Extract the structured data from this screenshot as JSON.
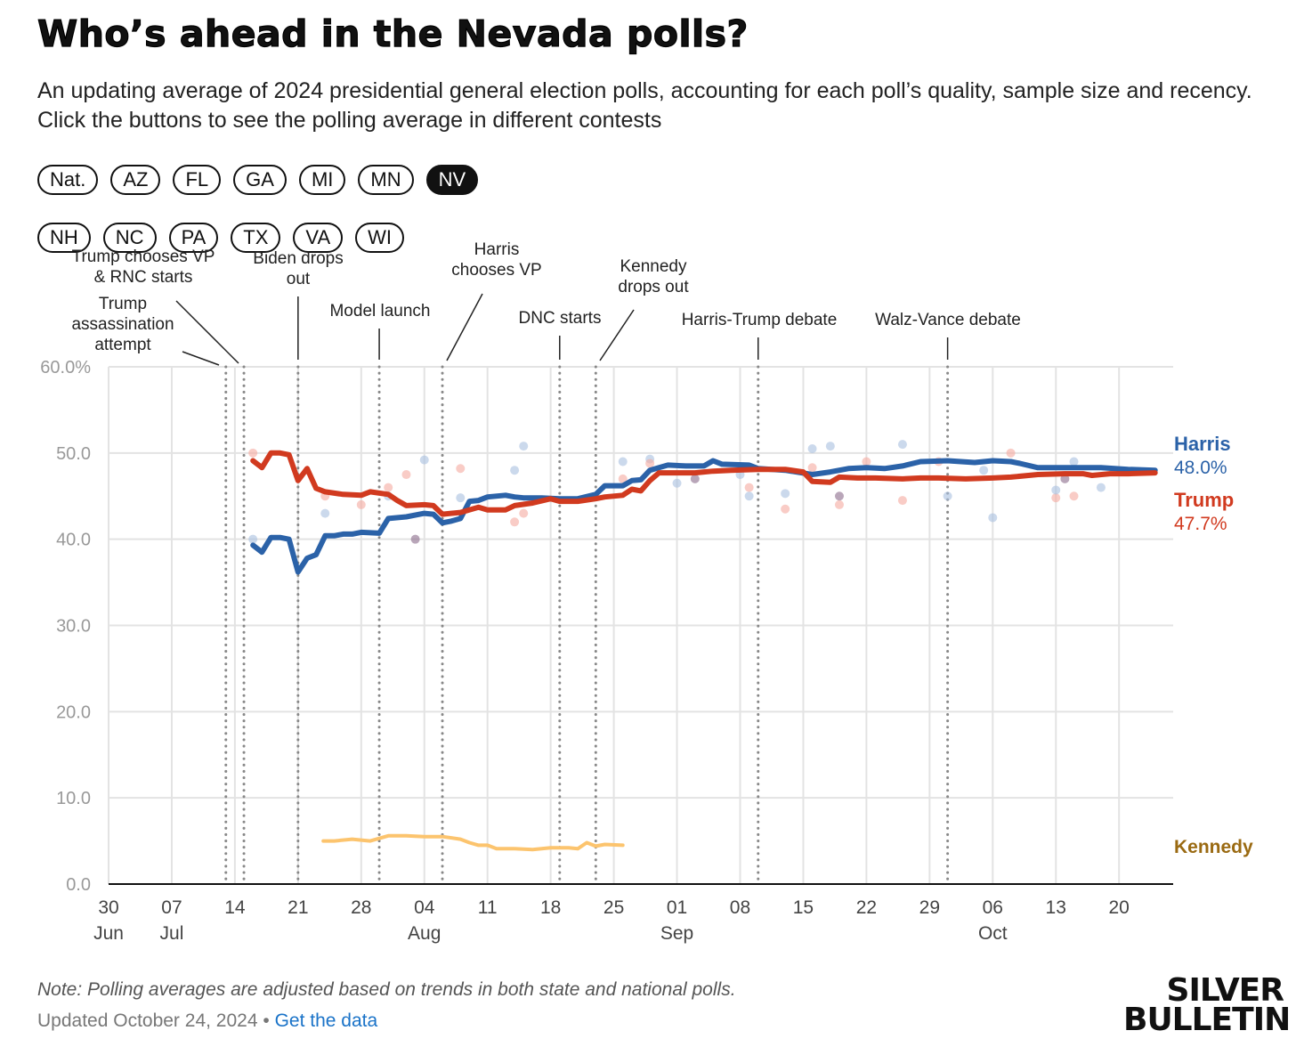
{
  "title": "Who’s ahead in the Nevada polls?",
  "subtitle": "An updating average of 2024 presidential general election polls, accounting for each poll’s quality, sample size and recency. Click the buttons to see the polling average in different contests",
  "buttons_row1": [
    "Nat.",
    "AZ",
    "FL",
    "GA",
    "MI",
    "MN",
    "NV"
  ],
  "buttons_row2": [
    "NH",
    "NC",
    "PA",
    "TX",
    "VA",
    "WI"
  ],
  "active_button": "NV",
  "note": "Note: Polling averages are adjusted based on trends in both state and national polls.",
  "updated": "Updated October 24, 2024",
  "separator": "•",
  "get_data": "Get the data",
  "logo": "SILVER BULLETIN",
  "chart_data": {
    "type": "line",
    "xlabel": "",
    "ylabel": "",
    "x_unit": "days since 30 Jun 2024",
    "xlim": [
      0,
      118
    ],
    "ylim": [
      0,
      60
    ],
    "yticks": [
      0,
      10,
      20,
      30,
      40,
      50,
      60
    ],
    "ytick_labels": [
      "0.0",
      "10.0",
      "20.0",
      "30.0",
      "40.0",
      "50.0",
      "60.0%"
    ],
    "xticks": [
      {
        "day": 0,
        "label": "30",
        "month": "Jun"
      },
      {
        "day": 7,
        "label": "07",
        "month": "Jul"
      },
      {
        "day": 14,
        "label": "14"
      },
      {
        "day": 21,
        "label": "21"
      },
      {
        "day": 28,
        "label": "28"
      },
      {
        "day": 35,
        "label": "04",
        "month": "Aug"
      },
      {
        "day": 42,
        "label": "11"
      },
      {
        "day": 49,
        "label": "18"
      },
      {
        "day": 56,
        "label": "25"
      },
      {
        "day": 63,
        "label": "01",
        "month": "Sep"
      },
      {
        "day": 70,
        "label": "08"
      },
      {
        "day": 77,
        "label": "15"
      },
      {
        "day": 84,
        "label": "22"
      },
      {
        "day": 91,
        "label": "29"
      },
      {
        "day": 98,
        "label": "06",
        "month": "Oct"
      },
      {
        "day": 105,
        "label": "13"
      },
      {
        "day": 112,
        "label": "20"
      }
    ],
    "grid": true,
    "series": [
      {
        "name": "Harris",
        "label_value": "48.0%",
        "color": "#2b62a8",
        "points": [
          [
            16,
            39.3
          ],
          [
            17,
            38.5
          ],
          [
            18,
            40.2
          ],
          [
            19,
            40.2
          ],
          [
            20,
            40.0
          ],
          [
            21,
            36.2
          ],
          [
            22,
            37.8
          ],
          [
            23,
            38.2
          ],
          [
            24,
            40.4
          ],
          [
            25,
            40.4
          ],
          [
            26,
            40.6
          ],
          [
            27,
            40.6
          ],
          [
            28,
            40.8
          ],
          [
            30,
            40.7
          ],
          [
            31,
            42.4
          ],
          [
            33,
            42.6
          ],
          [
            35,
            43.0
          ],
          [
            36,
            42.9
          ],
          [
            37,
            41.9
          ],
          [
            38,
            42.1
          ],
          [
            39,
            42.4
          ],
          [
            40,
            44.4
          ],
          [
            41,
            44.5
          ],
          [
            42,
            44.9
          ],
          [
            44,
            45.1
          ],
          [
            45,
            44.9
          ],
          [
            46,
            44.8
          ],
          [
            48,
            44.8
          ],
          [
            50,
            44.7
          ],
          [
            52,
            44.7
          ],
          [
            54,
            45.2
          ],
          [
            55,
            46.2
          ],
          [
            57,
            46.2
          ],
          [
            58,
            46.8
          ],
          [
            59,
            46.9
          ],
          [
            60,
            48.0
          ],
          [
            61,
            48.3
          ],
          [
            62,
            48.6
          ],
          [
            64,
            48.5
          ],
          [
            66,
            48.5
          ],
          [
            67,
            49.1
          ],
          [
            68,
            48.7
          ],
          [
            71,
            48.6
          ],
          [
            72,
            48.2
          ],
          [
            75,
            48.0
          ],
          [
            78,
            47.5
          ],
          [
            80,
            47.8
          ],
          [
            82,
            48.2
          ],
          [
            84,
            48.3
          ],
          [
            86,
            48.2
          ],
          [
            88,
            48.5
          ],
          [
            90,
            49.0
          ],
          [
            93,
            49.1
          ],
          [
            96,
            48.9
          ],
          [
            98,
            49.1
          ],
          [
            100,
            49.0
          ],
          [
            101,
            48.8
          ],
          [
            103,
            48.3
          ],
          [
            107,
            48.3
          ],
          [
            110,
            48.3
          ],
          [
            113,
            48.1
          ],
          [
            116,
            48.0
          ]
        ]
      },
      {
        "name": "Trump",
        "label_value": "47.7%",
        "color": "#d13a1f",
        "points": [
          [
            16,
            49.1
          ],
          [
            17,
            48.3
          ],
          [
            18,
            50.0
          ],
          [
            19,
            50.0
          ],
          [
            20,
            49.8
          ],
          [
            21,
            46.8
          ],
          [
            22,
            48.2
          ],
          [
            23,
            45.9
          ],
          [
            24,
            45.5
          ],
          [
            26,
            45.2
          ],
          [
            28,
            45.1
          ],
          [
            29,
            45.5
          ],
          [
            31,
            45.2
          ],
          [
            32,
            44.5
          ],
          [
            33,
            43.9
          ],
          [
            35,
            44.0
          ],
          [
            36,
            43.9
          ],
          [
            37,
            42.9
          ],
          [
            39,
            43.1
          ],
          [
            41,
            43.7
          ],
          [
            42,
            43.4
          ],
          [
            44,
            43.4
          ],
          [
            45,
            43.9
          ],
          [
            47,
            44.2
          ],
          [
            49,
            44.7
          ],
          [
            50,
            44.4
          ],
          [
            52,
            44.4
          ],
          [
            54,
            44.7
          ],
          [
            55,
            44.9
          ],
          [
            57,
            45.1
          ],
          [
            58,
            45.8
          ],
          [
            59,
            45.6
          ],
          [
            60,
            46.8
          ],
          [
            61,
            47.7
          ],
          [
            63,
            47.7
          ],
          [
            65,
            47.7
          ],
          [
            67,
            47.9
          ],
          [
            69,
            48.0
          ],
          [
            72,
            48.1
          ],
          [
            75,
            48.1
          ],
          [
            77,
            47.8
          ],
          [
            78,
            46.7
          ],
          [
            80,
            46.6
          ],
          [
            81,
            47.2
          ],
          [
            83,
            47.1
          ],
          [
            85,
            47.1
          ],
          [
            88,
            47.0
          ],
          [
            90,
            47.1
          ],
          [
            92,
            47.1
          ],
          [
            95,
            47.0
          ],
          [
            98,
            47.1
          ],
          [
            100,
            47.2
          ],
          [
            103,
            47.5
          ],
          [
            106,
            47.6
          ],
          [
            108,
            47.6
          ],
          [
            109,
            47.4
          ],
          [
            111,
            47.6
          ],
          [
            113,
            47.6
          ],
          [
            116,
            47.7
          ]
        ]
      },
      {
        "name": "Kennedy",
        "label_value": "",
        "color": "#fcc46e",
        "label_color": "#9a6a12",
        "points": [
          [
            23.8,
            5.0
          ],
          [
            25,
            5.0
          ],
          [
            27,
            5.2
          ],
          [
            29,
            5.0
          ],
          [
            31,
            5.6
          ],
          [
            33,
            5.6
          ],
          [
            35,
            5.5
          ],
          [
            37,
            5.5
          ],
          [
            39,
            5.2
          ],
          [
            40,
            4.8
          ],
          [
            41,
            4.5
          ],
          [
            42,
            4.5
          ],
          [
            43,
            4.1
          ],
          [
            45,
            4.1
          ],
          [
            47,
            4.0
          ],
          [
            49,
            4.2
          ],
          [
            51,
            4.2
          ],
          [
            52,
            4.1
          ],
          [
            53,
            4.8
          ],
          [
            55,
            4.6
          ],
          [
            57,
            4.5
          ],
          [
            54,
            4.4
          ]
        ]
      }
    ],
    "polls": [
      {
        "candidate": "Trump",
        "day": 16,
        "value": 50.0
      },
      {
        "candidate": "Harris",
        "day": 16,
        "value": 40.0
      },
      {
        "candidate": "Trump",
        "day": 24,
        "value": 45.0
      },
      {
        "candidate": "Harris",
        "day": 24,
        "value": 43.0
      },
      {
        "candidate": "Trump",
        "day": 28,
        "value": 44.0
      },
      {
        "candidate": "Trump",
        "day": 31,
        "value": 46.0
      },
      {
        "candidate": "Harris",
        "day": 31,
        "value": 45.0
      },
      {
        "candidate": "Trump",
        "day": 33,
        "value": 47.5
      },
      {
        "candidate": "Harris",
        "day": 35,
        "value": 49.2
      },
      {
        "candidate": "Both",
        "day": 34,
        "value": 40.0
      },
      {
        "candidate": "Trump",
        "day": 39,
        "value": 48.2
      },
      {
        "candidate": "Harris",
        "day": 39,
        "value": 44.8
      },
      {
        "candidate": "Harris",
        "day": 45,
        "value": 48.0
      },
      {
        "candidate": "Trump",
        "day": 45,
        "value": 42.0
      },
      {
        "candidate": "Harris",
        "day": 46,
        "value": 50.8
      },
      {
        "candidate": "Trump",
        "day": 46,
        "value": 43.0
      },
      {
        "candidate": "Harris",
        "day": 57,
        "value": 49.0
      },
      {
        "candidate": "Trump",
        "day": 57,
        "value": 47.0
      },
      {
        "candidate": "Harris",
        "day": 60,
        "value": 49.3
      },
      {
        "candidate": "Trump",
        "day": 60,
        "value": 48.8
      },
      {
        "candidate": "Harris",
        "day": 63,
        "value": 46.5
      },
      {
        "candidate": "Both",
        "day": 65,
        "value": 47.0
      },
      {
        "candidate": "Harris",
        "day": 70,
        "value": 47.5
      },
      {
        "candidate": "Trump",
        "day": 71,
        "value": 46.0
      },
      {
        "candidate": "Harris",
        "day": 71,
        "value": 45.0
      },
      {
        "candidate": "Trump",
        "day": 75,
        "value": 43.5
      },
      {
        "candidate": "Harris",
        "day": 75,
        "value": 45.3
      },
      {
        "candidate": "Harris",
        "day": 78,
        "value": 50.5
      },
      {
        "candidate": "Trump",
        "day": 78,
        "value": 48.3
      },
      {
        "candidate": "Harris",
        "day": 80,
        "value": 50.8
      },
      {
        "candidate": "Both",
        "day": 81,
        "value": 45.0
      },
      {
        "candidate": "Trump",
        "day": 81,
        "value": 44.0
      },
      {
        "candidate": "Trump",
        "day": 84,
        "value": 49.0
      },
      {
        "candidate": "Harris",
        "day": 88,
        "value": 51.0
      },
      {
        "candidate": "Trump",
        "day": 88,
        "value": 44.5
      },
      {
        "candidate": "Trump",
        "day": 92,
        "value": 49.0
      },
      {
        "candidate": "Harris",
        "day": 93,
        "value": 45.0
      },
      {
        "candidate": "Harris",
        "day": 97,
        "value": 48.0
      },
      {
        "candidate": "Harris",
        "day": 98,
        "value": 42.5
      },
      {
        "candidate": "Trump",
        "day": 100,
        "value": 50.0
      },
      {
        "candidate": "Trump",
        "day": 105,
        "value": 44.8
      },
      {
        "candidate": "Harris",
        "day": 105,
        "value": 45.7
      },
      {
        "candidate": "Both",
        "day": 106,
        "value": 47.0
      },
      {
        "candidate": "Harris",
        "day": 107,
        "value": 49.0
      },
      {
        "candidate": "Trump",
        "day": 107,
        "value": 45.0
      },
      {
        "candidate": "Harris",
        "day": 110,
        "value": 46.0
      }
    ],
    "events": [
      {
        "day": 13,
        "label": [
          "Trump",
          "assassination",
          "attempt"
        ]
      },
      {
        "day": 15,
        "label": [
          "Trump chooses VP",
          "& RNC starts"
        ]
      },
      {
        "day": 21,
        "label": [
          "Biden drops",
          "out"
        ]
      },
      {
        "day": 30,
        "label": [
          "Model launch"
        ]
      },
      {
        "day": 37,
        "label": [
          "Harris",
          "chooses VP"
        ]
      },
      {
        "day": 50,
        "label": [
          "DNC starts"
        ]
      },
      {
        "day": 54,
        "label": [
          "Kennedy",
          "drops out"
        ]
      },
      {
        "day": 72,
        "label": [
          "Harris-Trump debate"
        ]
      },
      {
        "day": 93,
        "label": [
          "Walz-Vance debate"
        ]
      }
    ]
  }
}
